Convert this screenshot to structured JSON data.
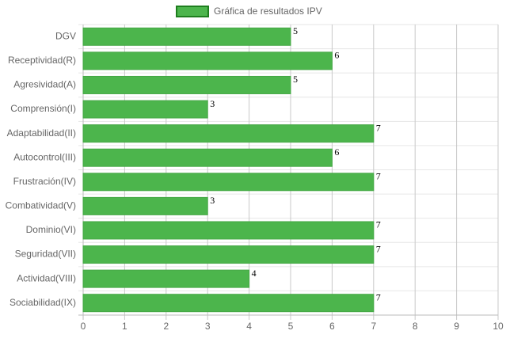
{
  "chart_data": {
    "type": "hbar",
    "categories": [
      "DGV",
      "Receptividad(R)",
      "Agresividad(A)",
      "Comprensión(I)",
      "Adaptabilidad(II)",
      "Autocontrol(III)",
      "Frustración(IV)",
      "Combatividad(V)",
      "Dominio(VI)",
      "Seguridad(VII)",
      "Actividad(VIII)",
      "Sociabilidad(IX)"
    ],
    "series": [
      {
        "name": "Gráfica de resultados IPV",
        "color": "#4cb54c",
        "values": [
          5,
          6,
          5,
          3,
          7,
          6,
          7,
          3,
          7,
          7,
          4,
          7
        ]
      }
    ],
    "xlim": [
      0,
      10
    ],
    "xticks": [
      0,
      1,
      2,
      3,
      4,
      5,
      6,
      7,
      8,
      9,
      10
    ],
    "grid": true,
    "legend": "top"
  }
}
